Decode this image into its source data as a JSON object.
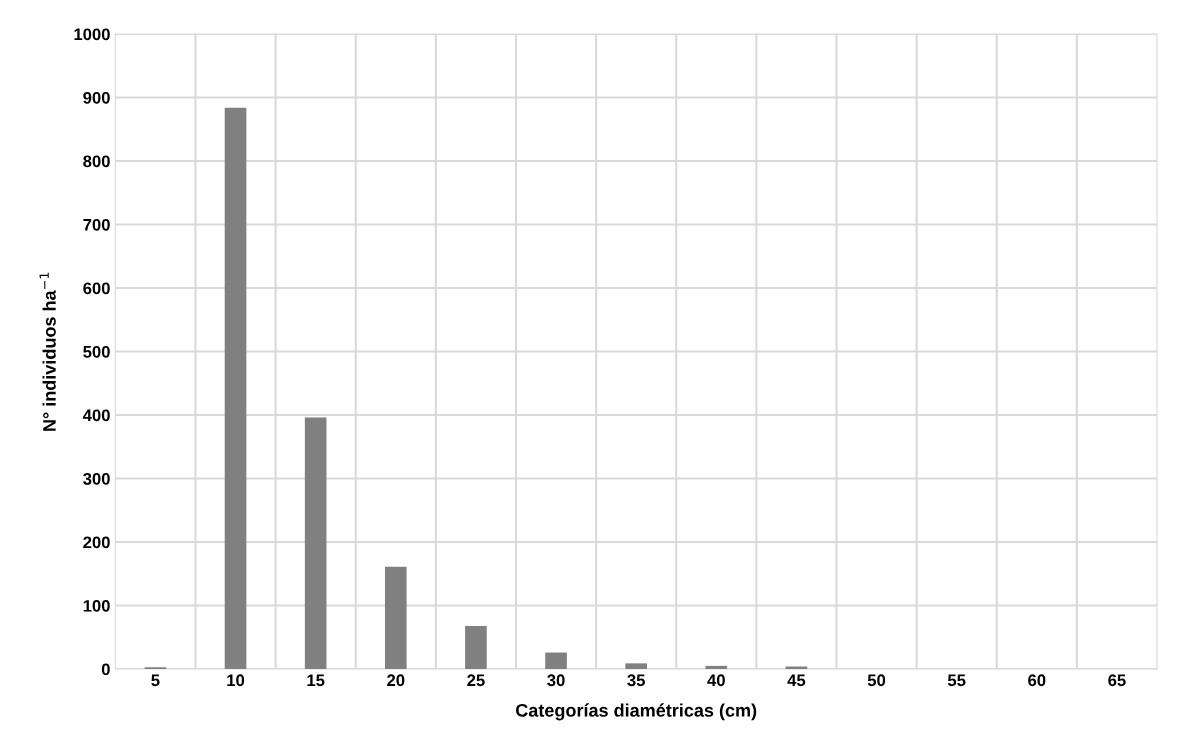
{
  "chart_data": {
    "type": "bar",
    "xlabel": "Categorías diamétricas (cm)",
    "ylabel": "N° individuos ha$^{−1}$",
    "categories": [
      "5",
      "10",
      "15",
      "20",
      "25",
      "30",
      "35",
      "40",
      "45",
      "50",
      "55",
      "60",
      "65"
    ],
    "values": [
      3,
      884,
      396,
      161,
      68,
      26,
      9,
      5,
      4,
      0,
      0,
      0,
      0
    ],
    "color": "#808080",
    "ylim": [
      0,
      1000
    ],
    "yticks": [
      0,
      100,
      200,
      300,
      400,
      500,
      600,
      700,
      800,
      900,
      1000
    ],
    "grid": true,
    "legend": false
  }
}
